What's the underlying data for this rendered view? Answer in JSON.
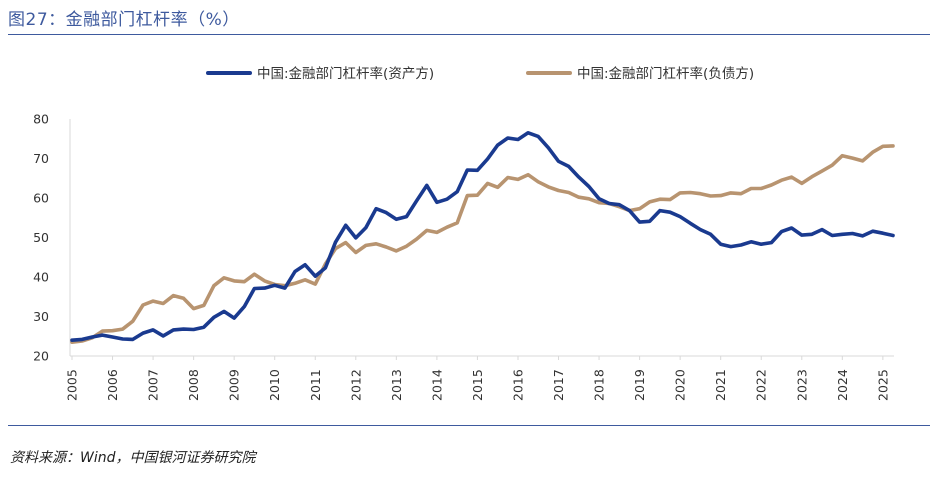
{
  "figure": {
    "title": "图27：金融部门杠杆率（%）",
    "source": "资料来源：Wind，中国银河证券研究院"
  },
  "chart_data": {
    "type": "line",
    "title": "金融部门杠杆率（%）",
    "xlabel": "",
    "ylabel": "",
    "ylim": [
      20,
      80
    ],
    "yticks": [
      20,
      30,
      40,
      50,
      60,
      70,
      80
    ],
    "xlim": [
      2005,
      2025.25
    ],
    "xticks": [
      "2005",
      "2006",
      "2007",
      "2008",
      "2009",
      "2010",
      "2011",
      "2012",
      "2013",
      "2014",
      "2015",
      "2016",
      "2017",
      "2018",
      "2019",
      "2020",
      "2021",
      "2022",
      "2023",
      "2024",
      "2025"
    ],
    "grid": false,
    "legend_position": "top-center",
    "series": [
      {
        "name": "中国:金融部门杠杆率(资产方)",
        "color": "#1a3a8f",
        "x": [
          2005,
          2005.25,
          2005.5,
          2005.75,
          2006,
          2006.25,
          2006.5,
          2006.75,
          2007,
          2007.25,
          2007.5,
          2007.75,
          2008,
          2008.25,
          2008.5,
          2008.75,
          2009,
          2009.25,
          2009.5,
          2009.75,
          2010,
          2010.25,
          2010.5,
          2010.75,
          2011,
          2011.25,
          2011.5,
          2011.75,
          2012,
          2012.25,
          2012.5,
          2012.75,
          2013,
          2013.25,
          2013.5,
          2013.75,
          2014,
          2014.25,
          2014.5,
          2014.75,
          2015,
          2015.25,
          2015.5,
          2015.75,
          2016,
          2016.25,
          2016.5,
          2016.75,
          2017,
          2017.25,
          2017.5,
          2017.75,
          2018,
          2018.25,
          2018.5,
          2018.75,
          2019,
          2019.25,
          2019.5,
          2019.75,
          2020,
          2020.25,
          2020.5,
          2020.75,
          2021,
          2021.25,
          2021.5,
          2021.75,
          2022,
          2022.25,
          2022.5,
          2022.75,
          2023,
          2023.25,
          2023.5,
          2023.75,
          2024,
          2024.25,
          2024.5,
          2024.75,
          2025,
          2025.25
        ],
        "values": [
          24,
          24.2,
          24.8,
          25.3,
          24.8,
          24.3,
          24.2,
          25.8,
          26.6,
          25.1,
          26.6,
          26.8,
          26.7,
          27.3,
          29.8,
          31.3,
          29.6,
          32.5,
          37.1,
          37.2,
          37.9,
          37.2,
          41.4,
          43.1,
          40.2,
          42.3,
          48.8,
          53.1,
          49.9,
          52.5,
          57.3,
          56.3,
          54.6,
          55.3,
          59.3,
          63.2,
          58.9,
          59.7,
          61.6,
          67.1,
          67,
          69.9,
          73.4,
          75.2,
          74.8,
          76.5,
          75.6,
          72.7,
          69.3,
          68,
          65.3,
          62.9,
          59.8,
          58.6,
          58.3,
          56.8,
          53.9,
          54.1,
          56.8,
          56.4,
          55.3,
          53.6,
          52,
          50.8,
          48.3,
          47.7,
          48.1,
          48.9,
          48.3,
          48.7,
          51.5,
          52.4,
          50.6,
          50.8,
          52,
          50.5,
          50.8,
          51,
          50.4,
          51.6,
          51.1,
          50.5
        ]
      },
      {
        "name": "中国:金融部门杠杆率(负债方)",
        "color": "#b89470",
        "x": [
          2005,
          2005.25,
          2005.5,
          2005.75,
          2006,
          2006.25,
          2006.5,
          2006.75,
          2007,
          2007.25,
          2007.5,
          2007.75,
          2008,
          2008.25,
          2008.5,
          2008.75,
          2009,
          2009.25,
          2009.5,
          2009.75,
          2010,
          2010.25,
          2010.5,
          2010.75,
          2011,
          2011.25,
          2011.5,
          2011.75,
          2012,
          2012.25,
          2012.5,
          2012.75,
          2013,
          2013.25,
          2013.5,
          2013.75,
          2014,
          2014.25,
          2014.5,
          2014.75,
          2015,
          2015.25,
          2015.5,
          2015.75,
          2016,
          2016.25,
          2016.5,
          2016.75,
          2017,
          2017.25,
          2017.5,
          2017.75,
          2018,
          2018.25,
          2018.5,
          2018.75,
          2019,
          2019.25,
          2019.5,
          2019.75,
          2020,
          2020.25,
          2020.5,
          2020.75,
          2021,
          2021.25,
          2021.5,
          2021.75,
          2022,
          2022.25,
          2022.5,
          2022.75,
          2023,
          2023.25,
          2023.5,
          2023.75,
          2024,
          2024.25,
          2024.5,
          2024.75,
          2025,
          2025.25
        ],
        "values": [
          23.5,
          23.8,
          24.6,
          26.3,
          26.4,
          26.8,
          28.8,
          32.9,
          33.9,
          33.3,
          35.3,
          34.6,
          32,
          32.8,
          37.8,
          39.8,
          39,
          38.8,
          40.7,
          39,
          38.1,
          37.8,
          38.4,
          39.3,
          38.2,
          43.3,
          47.2,
          48.7,
          46.2,
          48,
          48.4,
          47.6,
          46.6,
          47.8,
          49.6,
          51.8,
          51.3,
          52.6,
          53.7,
          60.6,
          60.7,
          63.7,
          62.7,
          65.2,
          64.7,
          65.9,
          64.1,
          62.8,
          61.9,
          61.4,
          60.2,
          59.8,
          58.8,
          58.6,
          57.8,
          56.8,
          57.3,
          59,
          59.7,
          59.6,
          61.3,
          61.4,
          61.1,
          60.5,
          60.6,
          61.3,
          61.1,
          62.4,
          62.4,
          63.3,
          64.5,
          65.3,
          63.7,
          65.4,
          66.8,
          68.3,
          70.7,
          70.1,
          69.4,
          71.6,
          73.1,
          73.2
        ]
      }
    ]
  }
}
